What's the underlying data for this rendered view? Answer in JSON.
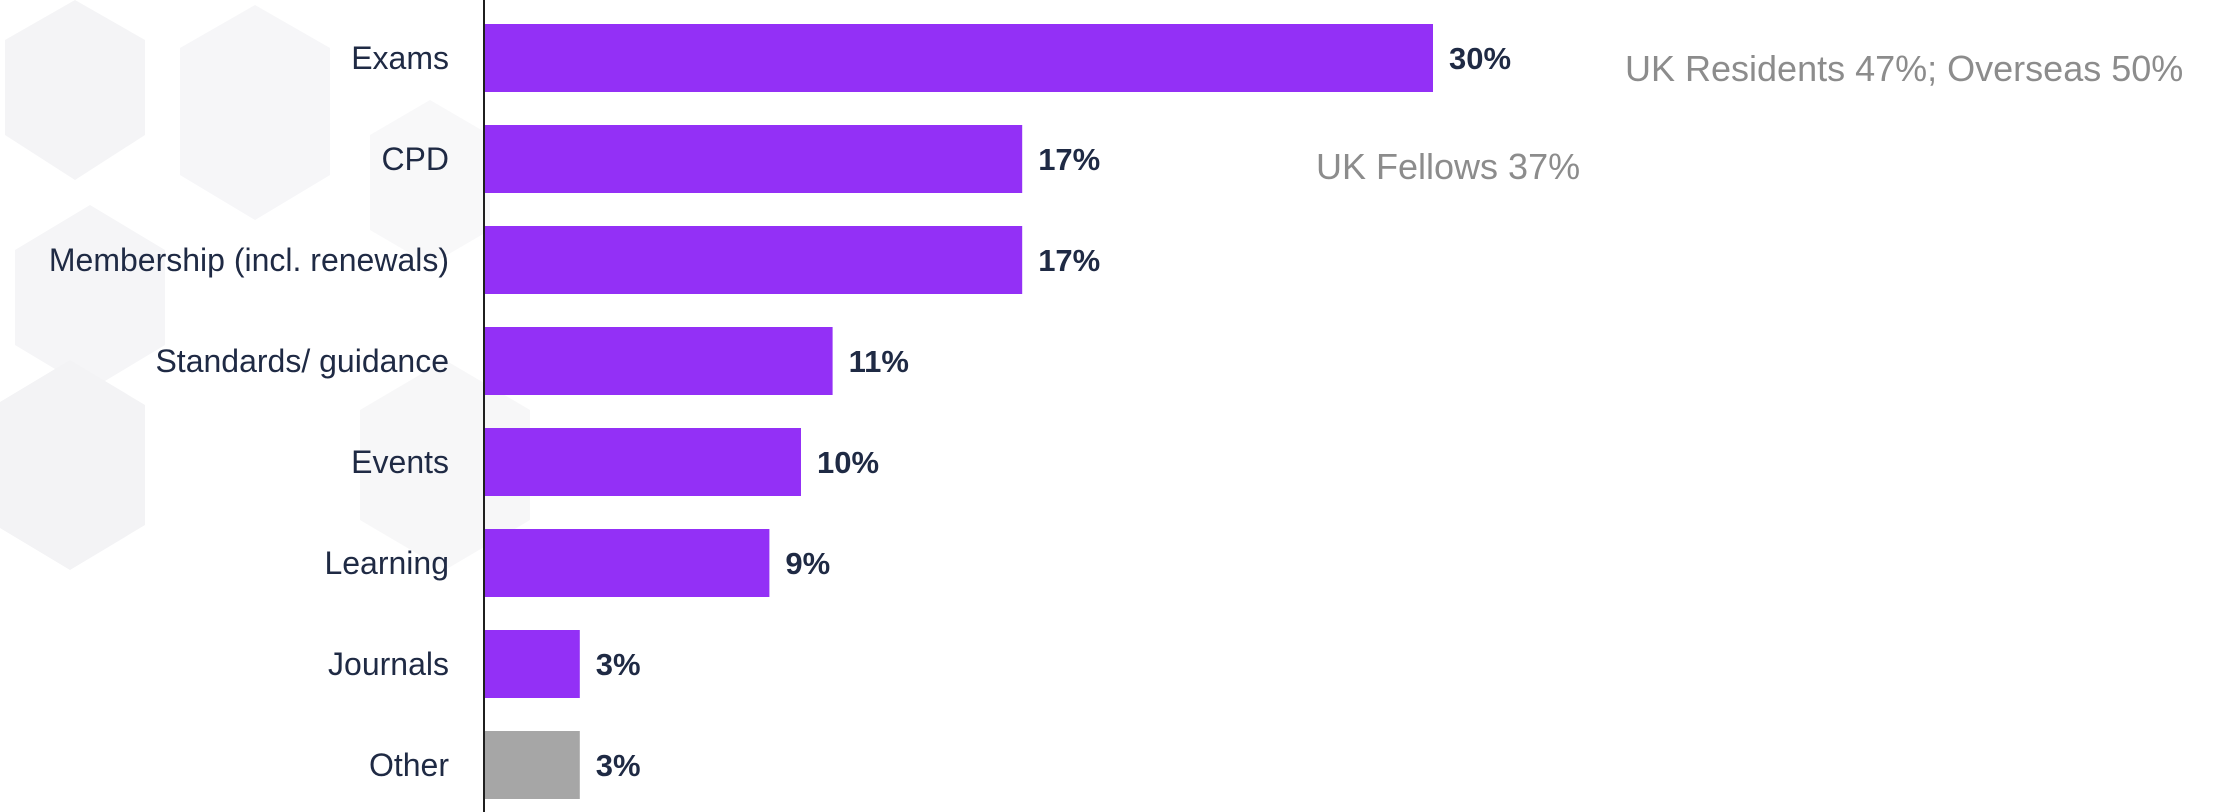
{
  "chart_data": {
    "type": "bar",
    "orientation": "horizontal",
    "categories": [
      "Exams",
      "CPD",
      "Membership (incl. renewals)",
      "Standards/ guidance",
      "Events",
      "Learning",
      "Journals",
      "Other"
    ],
    "values": [
      30,
      17,
      17,
      11,
      10,
      9,
      3,
      3
    ],
    "value_labels": [
      "30%",
      "17%",
      "17%",
      "11%",
      "10%",
      "9%",
      "3%",
      "3%"
    ],
    "colors": [
      "#9330f6",
      "#9330f6",
      "#9330f6",
      "#9330f6",
      "#9330f6",
      "#9330f6",
      "#9330f6",
      "#a6a6a6"
    ],
    "xlim": [
      0,
      35
    ],
    "grid": false,
    "title": "",
    "xlabel": "",
    "ylabel": "",
    "annotations": [
      {
        "id": "residents",
        "text": "UK Residents 47%; Overseas 50%"
      },
      {
        "id": "fellows",
        "text": "UK Fellows 37%"
      }
    ]
  },
  "colors": {
    "accent": "#9330f6",
    "other": "#a6a6a6",
    "text": "#1f2a44",
    "note": "#8c8c8c"
  }
}
